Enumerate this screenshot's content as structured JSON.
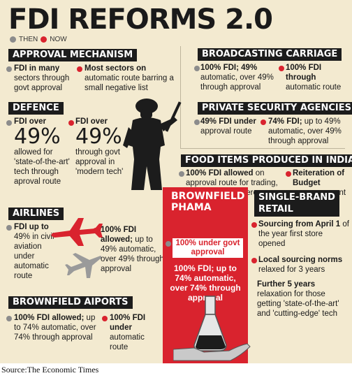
{
  "title": "FDI REFORMS 2.0",
  "legend": {
    "then": "THEN",
    "now": "NOW"
  },
  "approval": {
    "header": "APPROVAL MECHANISM",
    "then_a": "FDI in many",
    "then_b": "sectors through govt approval",
    "now_a": "Most sectors on",
    "now_b": "automatic route barring a small negative list"
  },
  "broadcasting": {
    "header": "BROADCASTING CARRIAGE",
    "then_a": "100% FDI; 49%",
    "then_b": "automatic, over 49% through approval",
    "now_a": "100% FDI",
    "now_b": "through",
    "now_c": "automatic route"
  },
  "defence": {
    "header": "DEFENCE",
    "then_a": "FDI over",
    "then_big": "49%",
    "then_b": "allowed for 'state-of-the-art' tech through aproval route",
    "now_a": "FDI over",
    "now_big": "49%",
    "now_b": "through govt approval in 'modern tech'"
  },
  "security": {
    "header": "PRIVATE SECURITY AGENCIES",
    "then_a": "49% FDI under",
    "then_b": "approval route",
    "now_a": "74% FDI;",
    "now_b": "up to 49% automatic, over 49% through approval"
  },
  "food": {
    "header": "FOOD ITEMS PRODUCED IN INDIA",
    "then_a": "100% FDI allowed",
    "then_b": "on approval route for trading, including ecommerce",
    "now_a": "Reiteration of Budget",
    "now_b": "announcement"
  },
  "airlines": {
    "header": "AIRLINES",
    "then_a": "FDI up to",
    "then_b": "49% in civil aviation under automatic route",
    "now_a": "100% FDI allowed;",
    "now_b": "up to 49% automatic, over 49% through approval"
  },
  "pharma": {
    "header_1": "BROWNFIELD",
    "header_2": "PHAMA",
    "then": "100% under govt approval",
    "now": "100% FDI; up to 74% automatic, over 74% through approval"
  },
  "single_brand": {
    "header_1": "SINGLE-BRAND",
    "header_2": "RETAIL",
    "point1_a": "Sourcing from April 1",
    "point1_b": "of the year first store opened",
    "point2_a": "Local sourcing norms",
    "point2_b": "relaxed for 3 years",
    "point3_a": "Further 5 years",
    "point3_b": "relaxation for those getting 'state-of-the-art' and 'cutting-edge' tech"
  },
  "airports": {
    "header": "BROWNFIELD AIPORTS",
    "then_a": "100% FDI allowed;",
    "then_b": "up to 74% automatic, over 74% through approval",
    "now_a": "100% FDI",
    "now_b": "under",
    "now_c": "automatic route"
  },
  "source": "Source:The Economic Times",
  "colors": {
    "background": "#f3ead0",
    "red": "#d9232e",
    "grey": "#8c8c8c",
    "dark": "#1c1c1c"
  },
  "icons": [
    "soldier-silhouette",
    "airplane-red",
    "airplane-grey",
    "lab-flask-in-hand"
  ]
}
